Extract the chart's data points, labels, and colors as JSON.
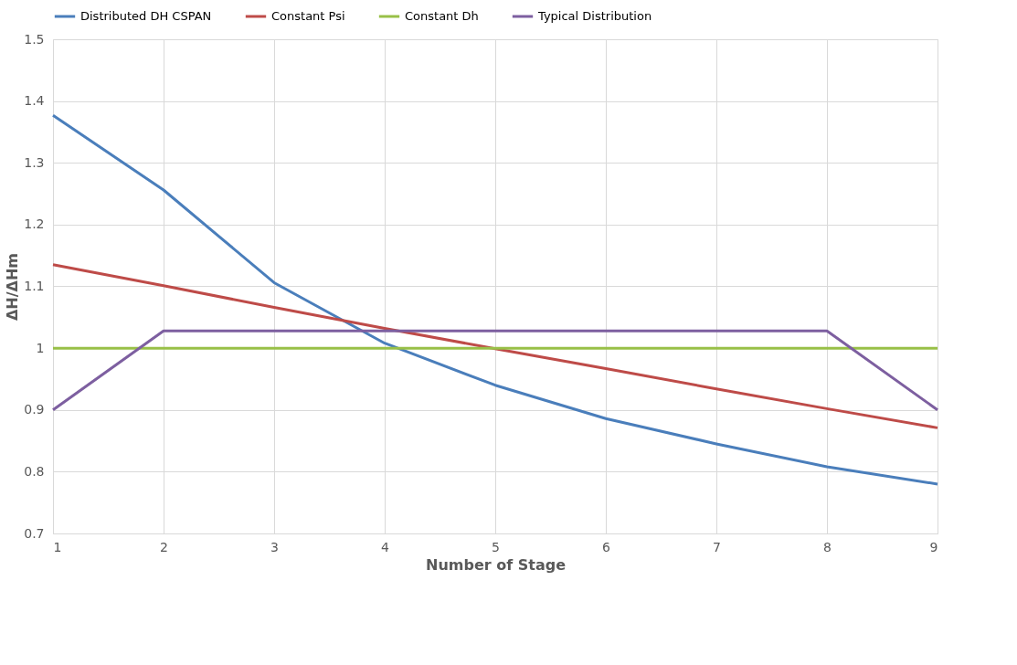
{
  "chart_data": {
    "type": "line",
    "xlabel": "Number of Stage",
    "ylabel": "ΔH/ΔHm",
    "x": [
      1,
      2,
      3,
      4,
      5,
      6,
      7,
      8,
      9
    ],
    "series": [
      {
        "name": "Distributed DH CSPAN",
        "color": "#4a7ebb",
        "values": [
          1.377,
          1.256,
          1.106,
          1.008,
          0.94,
          0.886,
          0.845,
          0.808,
          0.78
        ]
      },
      {
        "name": "Constant Psi",
        "color": "#be4b48",
        "values": [
          1.135,
          1.101,
          1.066,
          1.032,
          0.999,
          0.967,
          0.934,
          0.902,
          0.871
        ]
      },
      {
        "name": "Constant Dh",
        "color": "#98c047",
        "values": [
          1,
          1,
          1,
          1,
          1,
          1,
          1,
          1,
          1
        ]
      },
      {
        "name": "Typical Distribution",
        "color": "#7d5fa0",
        "values": [
          0.9,
          1.028,
          1.028,
          1.028,
          1.028,
          1.028,
          1.028,
          1.028,
          0.9
        ]
      }
    ],
    "xlim": [
      1,
      9
    ],
    "xticks": [
      1,
      2,
      3,
      4,
      5,
      6,
      7,
      8,
      9
    ],
    "ylim": [
      0.7,
      1.5
    ],
    "yticks": [
      0.7,
      0.8,
      0.9,
      1,
      1.1,
      1.2,
      1.3,
      1.4,
      1.5
    ],
    "grid": true,
    "legend": "top",
    "marker": "none",
    "line_style": "solid"
  }
}
